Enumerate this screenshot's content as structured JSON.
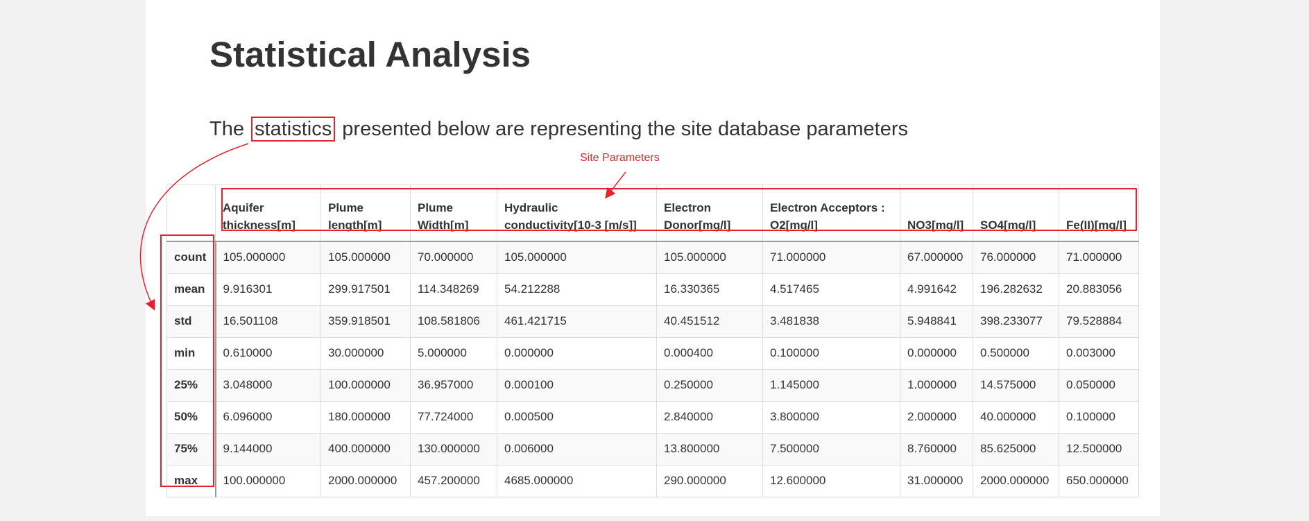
{
  "title": "Statistical Analysis",
  "intro": {
    "before": "The",
    "highlight": "statistics",
    "after": "presented below are representing the site database parameters"
  },
  "annotation": {
    "label": "Site Parameters",
    "color": "#e3232c"
  },
  "table": {
    "columns": [
      "",
      "Aquifer thickness[m]",
      "Plume length[m]",
      "Plume Width[m]",
      "Hydraulic conductivity[10-3 [m/s]]",
      "Electron Donor[mg/l]",
      "Electron Acceptors : O2[mg/l]",
      "NO3[mg/l]",
      "SO4[mg/l]",
      "Fe(II)[mg/l]"
    ],
    "rows": [
      [
        "count",
        "105.000000",
        "105.000000",
        "70.000000",
        "105.000000",
        "105.000000",
        "71.000000",
        "67.000000",
        "76.000000",
        "71.000000"
      ],
      [
        "mean",
        "9.916301",
        "299.917501",
        "114.348269",
        "54.212288",
        "16.330365",
        "4.517465",
        "4.991642",
        "196.282632",
        "20.883056"
      ],
      [
        "std",
        "16.501108",
        "359.918501",
        "108.581806",
        "461.421715",
        "40.451512",
        "3.481838",
        "5.948841",
        "398.233077",
        "79.528884"
      ],
      [
        "min",
        "0.610000",
        "30.000000",
        "5.000000",
        "0.000000",
        "0.000400",
        "0.100000",
        "0.000000",
        "0.500000",
        "0.003000"
      ],
      [
        "25%",
        "3.048000",
        "100.000000",
        "36.957000",
        "0.000100",
        "0.250000",
        "1.145000",
        "1.000000",
        "14.575000",
        "0.050000"
      ],
      [
        "50%",
        "6.096000",
        "180.000000",
        "77.724000",
        "0.000500",
        "2.840000",
        "3.800000",
        "2.000000",
        "40.000000",
        "0.100000"
      ],
      [
        "75%",
        "9.144000",
        "400.000000",
        "130.000000",
        "0.006000",
        "13.800000",
        "7.500000",
        "8.760000",
        "85.625000",
        "12.500000"
      ],
      [
        "max",
        "100.000000",
        "2000.000000",
        "457.200000",
        "4685.000000",
        "290.000000",
        "12.600000",
        "31.000000",
        "2000.000000",
        "650.000000"
      ]
    ]
  }
}
